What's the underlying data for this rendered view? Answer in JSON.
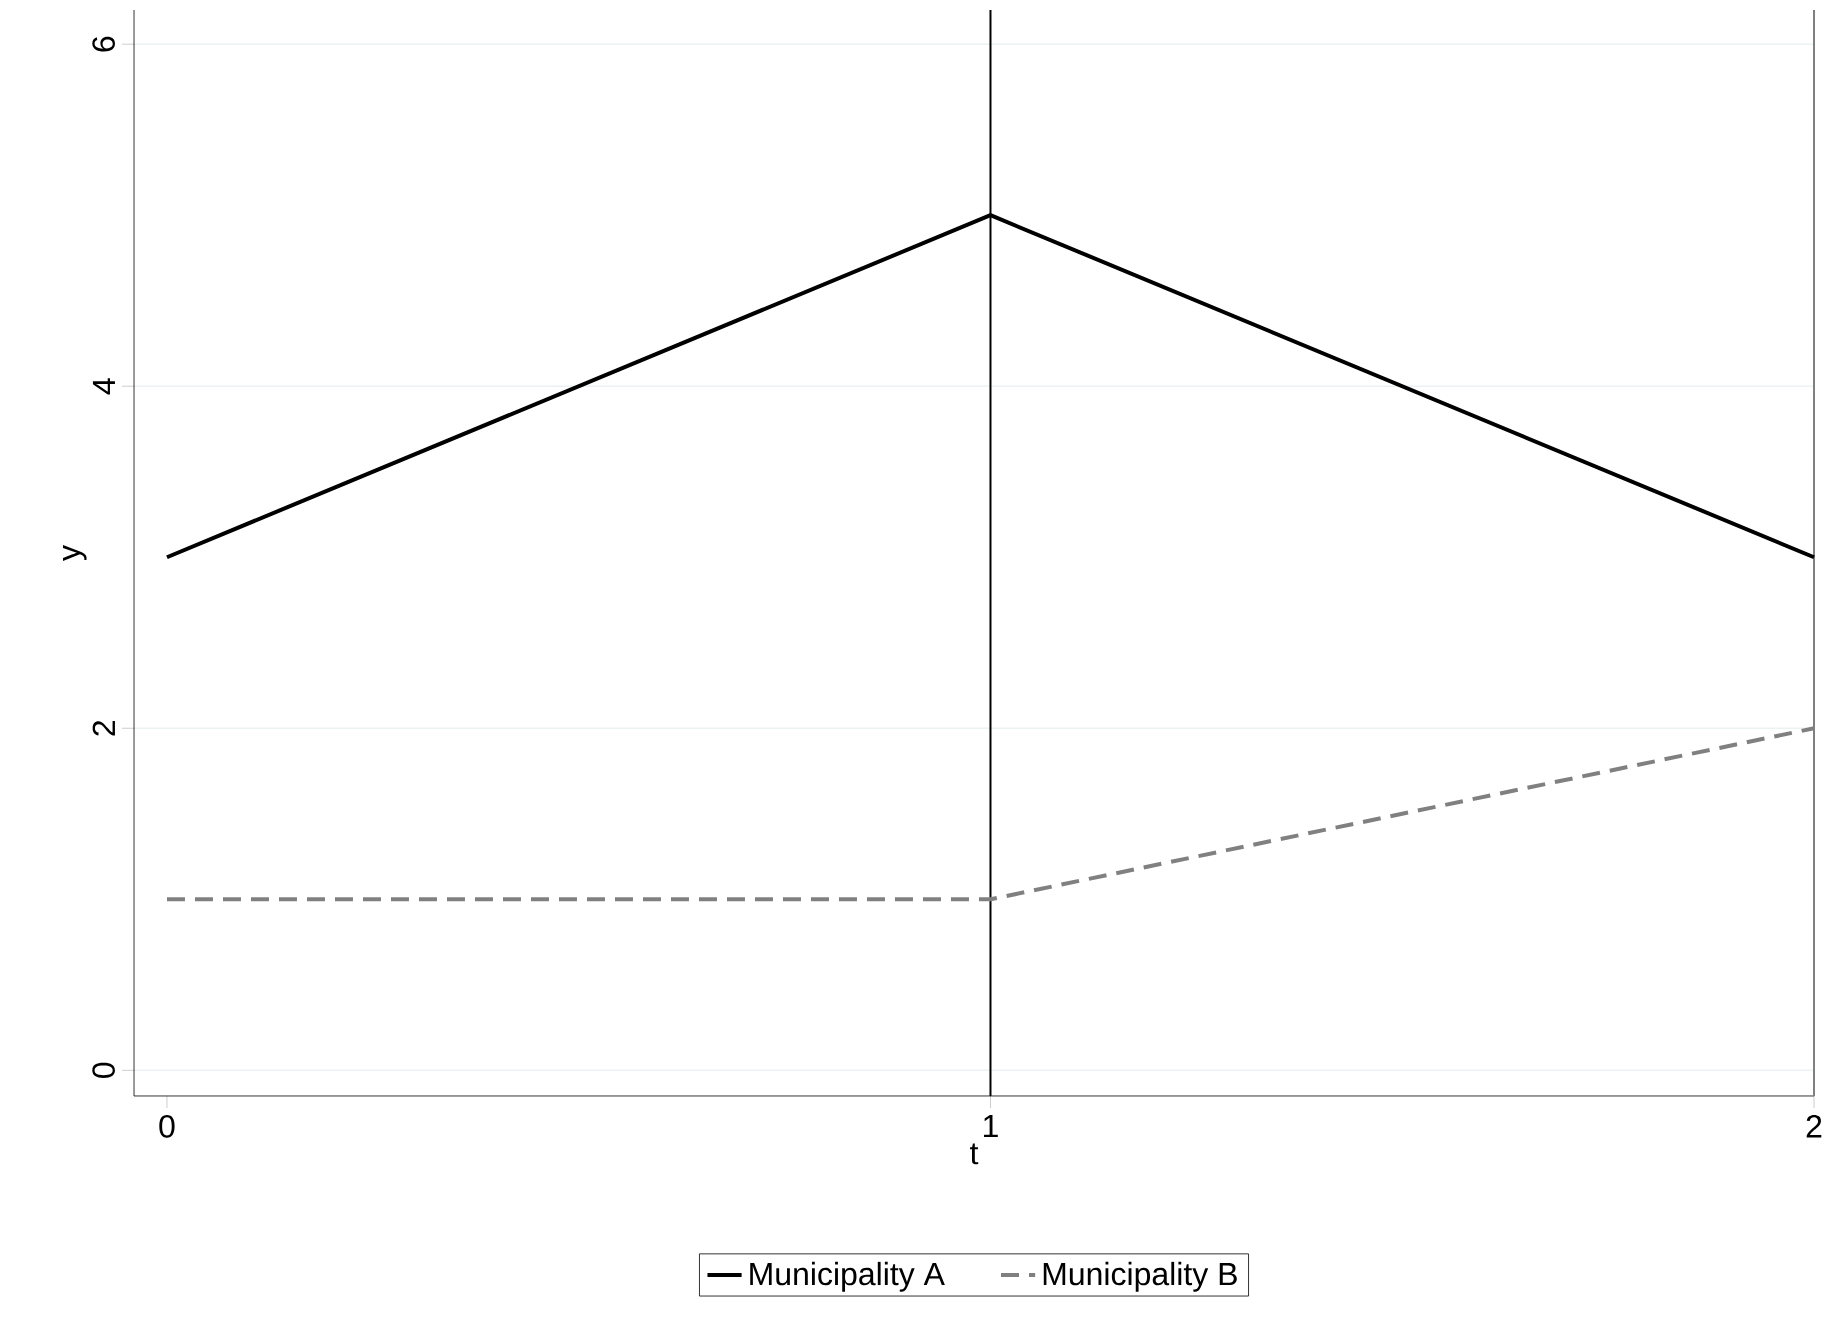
{
  "chart_data": {
    "type": "line",
    "xlabel": "t",
    "ylabel": "y",
    "x": [
      0,
      1,
      2
    ],
    "series": [
      {
        "name": "Municipality A",
        "color": "#000000",
        "line_style": "solid",
        "values": [
          3,
          5,
          3
        ]
      },
      {
        "name": "Municipality B",
        "color": "#808080",
        "line_style": "dashed",
        "values": [
          1,
          1,
          2
        ]
      }
    ],
    "xlim": [
      -0.04,
      2
    ],
    "xticks": [
      0,
      1,
      2
    ],
    "ylim": [
      -0.15,
      6.2
    ],
    "yticks": [
      0,
      2,
      4,
      6
    ],
    "grid": "y",
    "legend": "bottom",
    "marker": "none",
    "ref_lines": [
      {
        "axis": "x",
        "value": 1,
        "color": "#000000"
      },
      {
        "axis": "x",
        "value": 2,
        "color": "#808080"
      }
    ]
  }
}
